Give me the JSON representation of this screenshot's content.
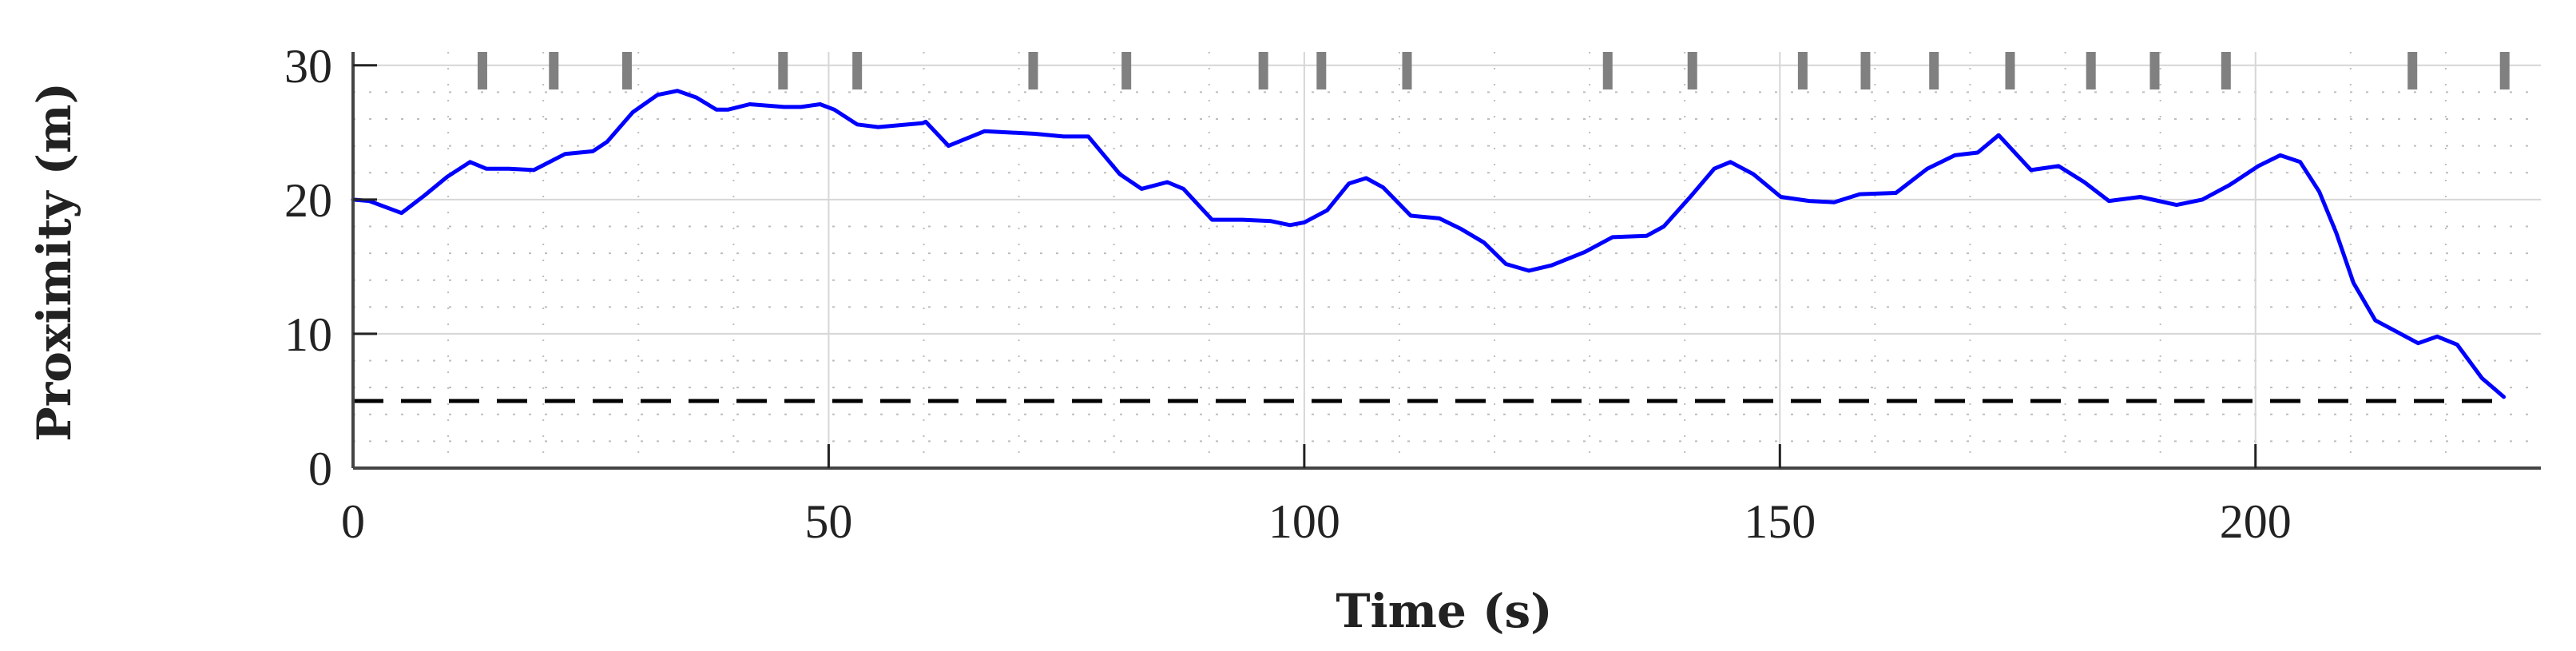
{
  "chart_data": {
    "type": "line",
    "title": "",
    "xlabel": "Time (s)",
    "ylabel": "Proximity (m)",
    "xlim": [
      0,
      230
    ],
    "ylim": [
      0,
      31
    ],
    "xticks": [
      "0",
      "50",
      "100",
      "150",
      "200"
    ],
    "yticks": [
      "0",
      "10",
      "20",
      "30"
    ],
    "grid": true,
    "minor_grid": true,
    "series": [
      {
        "color": "#0000ff",
        "style": "solid",
        "x": [
          0,
          1.7,
          5.1,
          7.5,
          9.9,
          12.3,
          14,
          16.4,
          19,
          22.3,
          25.2,
          26.7,
          29.4,
          32,
          34.1,
          36.1,
          38.2,
          39.4,
          41.7,
          45.3,
          47.1,
          49.1,
          50.6,
          53,
          55.2,
          59.9,
          60.2,
          62.6,
          66.4,
          71.7,
          74.7,
          77.3,
          80.6,
          82.9,
          85.6,
          87.3,
          90.3,
          93.5,
          96.5,
          98.5,
          100,
          102.4,
          104.7,
          106.5,
          108.3,
          111.2,
          114.2,
          116.5,
          118.9,
          121.2,
          123.6,
          126,
          129.5,
          132.4,
          136,
          137.8,
          140.7,
          143.1,
          144.8,
          147.2,
          150.1,
          153.1,
          155.7,
          158.4,
          162.2,
          165.5,
          168.4,
          170.8,
          173,
          176.4,
          179.3,
          182,
          184.6,
          187.9,
          191.7,
          194.4,
          197.3,
          200.3,
          202.6,
          204.7,
          206.7,
          208.5,
          210.3,
          212.6,
          215,
          217.1,
          219.1,
          221.2,
          223.8,
          226.1
        ],
        "y": [
          20.0,
          19.9,
          19.0,
          20.3,
          21.7,
          22.8,
          22.3,
          22.3,
          22.2,
          23.4,
          23.6,
          24.3,
          26.5,
          27.8,
          28.1,
          27.6,
          26.7,
          26.7,
          27.1,
          26.9,
          26.9,
          27.1,
          26.7,
          25.6,
          25.4,
          25.7,
          25.8,
          24.0,
          25.1,
          24.9,
          24.7,
          24.7,
          21.9,
          20.8,
          21.3,
          20.8,
          18.5,
          18.5,
          18.4,
          18.1,
          18.3,
          19.2,
          21.2,
          21.6,
          20.9,
          18.8,
          18.6,
          17.8,
          16.8,
          15.2,
          14.7,
          15.1,
          16.1,
          17.2,
          17.3,
          18.0,
          20.3,
          22.3,
          22.8,
          21.9,
          20.2,
          19.9,
          19.8,
          20.4,
          20.5,
          22.3,
          23.3,
          23.5,
          24.8,
          22.2,
          22.5,
          21.3,
          19.9,
          20.2,
          19.6,
          20.0,
          21.1,
          22.5,
          23.3,
          22.8,
          20.6,
          17.5,
          13.8,
          11.0,
          10.1,
          9.3,
          9.8,
          9.2,
          6.7,
          5.3
        ]
      },
      {
        "color": "#000000",
        "style": "dashed",
        "x": [
          0,
          226.1
        ],
        "y": [
          5,
          5
        ]
      }
    ],
    "event_markers": {
      "color": "#808080",
      "y_range": [
        28.2,
        31
      ],
      "x": [
        13.6,
        21.1,
        28.8,
        45.2,
        53.0,
        71.5,
        81.3,
        95.7,
        101.8,
        110.8,
        131.9,
        140.8,
        152.4,
        159.0,
        166.2,
        174.2,
        182.7,
        189.4,
        196.9,
        216.5,
        226.2
      ]
    }
  }
}
